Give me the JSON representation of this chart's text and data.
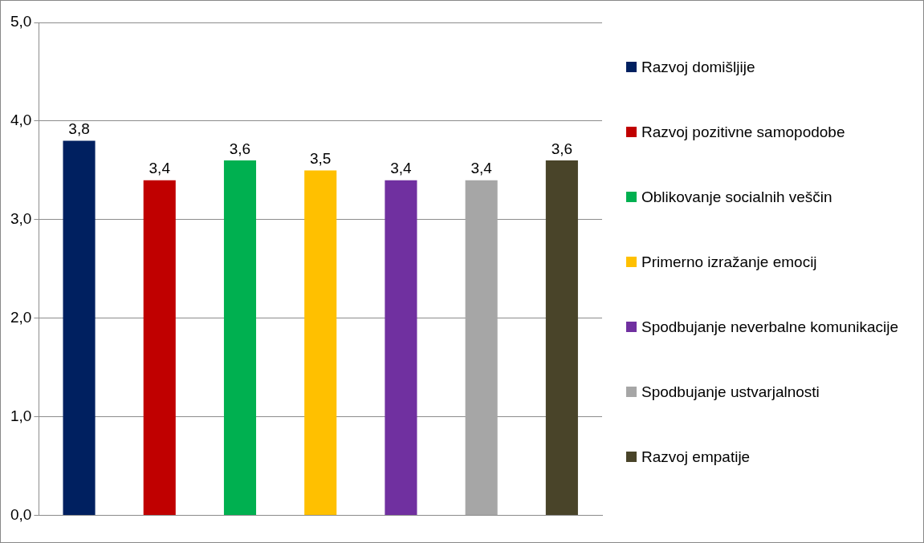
{
  "chart_data": {
    "type": "bar",
    "categories": [
      null
    ],
    "series": [
      {
        "name": "Razvoj domišljije",
        "color": "#002060",
        "values": [
          3.8
        ],
        "value_labels": [
          "3,8"
        ]
      },
      {
        "name": "Razvoj pozitivne samopodobe",
        "color": "#c00000",
        "values": [
          3.4
        ],
        "value_labels": [
          "3,4"
        ]
      },
      {
        "name": "Oblikovanje socialnih veščin",
        "color": "#00b050",
        "values": [
          3.6
        ],
        "value_labels": [
          "3,6"
        ]
      },
      {
        "name": "Primerno izražanje emocij",
        "color": "#ffc000",
        "values": [
          3.5
        ],
        "value_labels": [
          "3,5"
        ]
      },
      {
        "name": "Spodbujanje neverbalne komunikacije",
        "color": "#7030a0",
        "values": [
          3.4
        ],
        "value_labels": [
          "3,4"
        ]
      },
      {
        "name": "Spodbujanje ustvarjalnosti",
        "color": "#a6a6a6",
        "values": [
          3.4
        ],
        "value_labels": [
          "3,4"
        ]
      },
      {
        "name": "Razvoj empatije",
        "color": "#494429",
        "values": [
          3.6
        ],
        "value_labels": [
          "3,6"
        ]
      }
    ],
    "ylim": [
      0,
      5
    ],
    "yticks": [
      {
        "value": 0,
        "label": "0,0"
      },
      {
        "value": 1,
        "label": "1,0"
      },
      {
        "value": 2,
        "label": "2,0"
      },
      {
        "value": 3,
        "label": "3,0"
      },
      {
        "value": 4,
        "label": "4,0"
      },
      {
        "value": 5,
        "label": "5,0"
      }
    ],
    "grid": "y",
    "legend": "right"
  }
}
